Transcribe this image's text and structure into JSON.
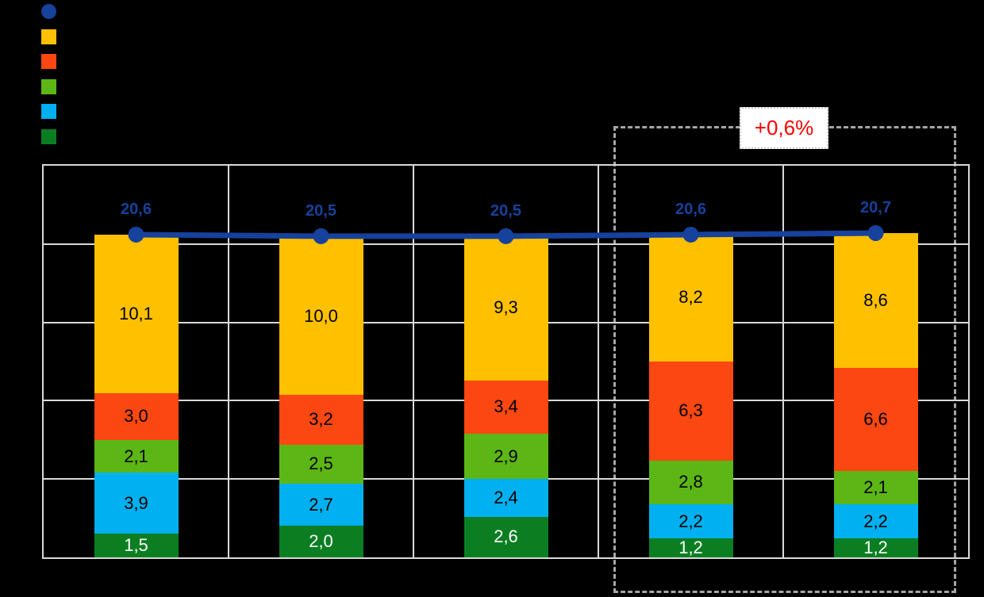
{
  "page": {
    "background": "#000000"
  },
  "legend": {
    "items": [
      {
        "name": "legend-marker-total-line",
        "marker": "circle",
        "color": "#16419C"
      },
      {
        "name": "legend-marker-yellow-segment",
        "marker": "square",
        "color": "#FFC000"
      },
      {
        "name": "legend-marker-orange-segment",
        "marker": "square",
        "color": "#FB4711"
      },
      {
        "name": "legend-marker-green-segment",
        "marker": "square",
        "color": "#5CB615"
      },
      {
        "name": "legend-marker-lightblue-segment",
        "marker": "square",
        "color": "#00B0F0"
      },
      {
        "name": "legend-marker-darkgreen-segment",
        "marker": "square",
        "color": "#0B7E22"
      }
    ]
  },
  "highlight": {
    "label": "+0,6%",
    "text_color": "#FF0000",
    "columns": [
      3,
      4
    ]
  },
  "chart_data": {
    "type": "bar",
    "subtype": "stacked-bars-with-total-line",
    "ylim": [
      0,
      25
    ],
    "grid": {
      "on": true,
      "x_divisions": 5,
      "y_divisions": 5,
      "color": "#D9D9D9"
    },
    "categories": [
      "",
      "",
      "",
      "",
      ""
    ],
    "series": [
      {
        "name": "dark-green",
        "color": "#0B7E22",
        "label_color": "#FFFFFF",
        "values": [
          1.5,
          2.0,
          2.6,
          1.2,
          1.2
        ],
        "labels": [
          "1,5",
          "2,0",
          "2,6",
          "1,2",
          "1,2"
        ]
      },
      {
        "name": "light-blue",
        "color": "#00B0F0",
        "label_color": "#000000",
        "values": [
          3.9,
          2.7,
          2.4,
          2.2,
          2.2
        ],
        "labels": [
          "3,9",
          "2,7",
          "2,4",
          "2,2",
          "2,2"
        ]
      },
      {
        "name": "green",
        "color": "#5CB615",
        "label_color": "#000000",
        "values": [
          2.1,
          2.5,
          2.9,
          2.8,
          2.1
        ],
        "labels": [
          "2,1",
          "2,5",
          "2,9",
          "2,8",
          "2,1"
        ]
      },
      {
        "name": "orange",
        "color": "#FB4711",
        "label_color": "#000000",
        "values": [
          3.0,
          3.2,
          3.4,
          6.3,
          6.6
        ],
        "labels": [
          "3,0",
          "3,2",
          "3,4",
          "6,3",
          "6,6"
        ]
      },
      {
        "name": "yellow",
        "color": "#FFC000",
        "label_color": "#000000",
        "values": [
          10.1,
          10.0,
          9.3,
          8.2,
          8.6
        ],
        "labels": [
          "10,1",
          "10,0",
          "9,3",
          "8,2",
          "8,6"
        ]
      }
    ],
    "line": {
      "name": "total-line",
      "color": "#16419C",
      "values": [
        20.6,
        20.5,
        20.5,
        20.6,
        20.7
      ],
      "labels": [
        "20,6",
        "20,5",
        "20,5",
        "20,6",
        "20,7"
      ]
    }
  }
}
